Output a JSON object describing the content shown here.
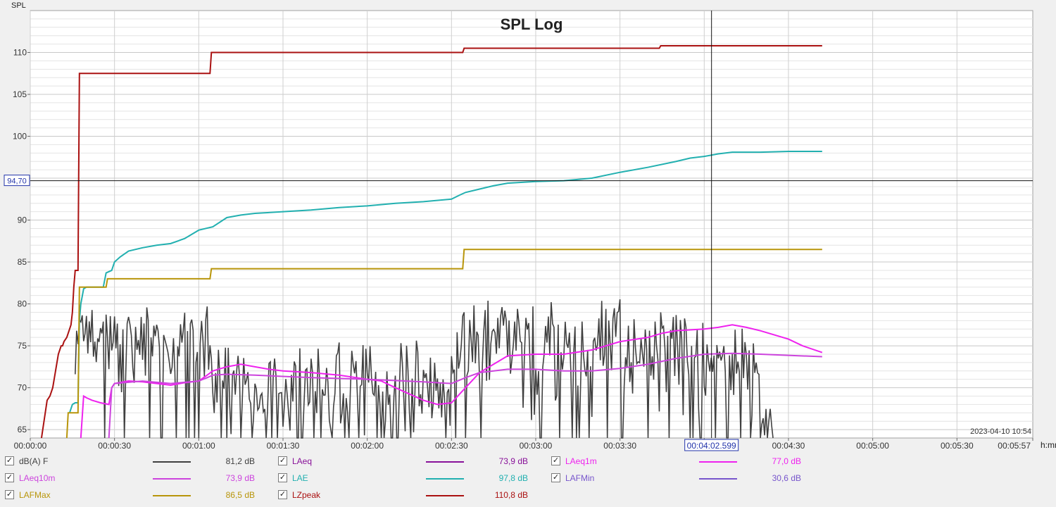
{
  "chart_data": {
    "type": "line",
    "title": "SPL Log",
    "ylabel": "SPL",
    "x_unit_label": "h:mm",
    "xlim": [
      "00:00:00",
      "00:05:57"
    ],
    "ylim": [
      64,
      115
    ],
    "x_ticks": [
      "00:00:00",
      "00:00:30",
      "00:01:00",
      "00:01:30",
      "00:02:00",
      "00:02:30",
      "00:03:00",
      "00:03:30",
      "00:04:00",
      "00:04:30",
      "00:05:00",
      "00:05:30",
      "00:05:57"
    ],
    "y_ticks": [
      "65",
      "70",
      "75",
      "80",
      "85",
      "90",
      "95",
      "100",
      "105",
      "110"
    ],
    "timestamp": "2023-04-10 10:54",
    "cursor": {
      "x_label": "00:04:02.599",
      "y_label": "94,70",
      "x_seconds": 242.6,
      "y_value": 94.7
    },
    "series": [
      {
        "name": "LZpeak",
        "color": "#aa1111",
        "x": [
          4,
          6,
          7,
          8,
          9,
          10,
          10.5,
          11,
          11.5,
          12,
          13,
          14,
          14.5,
          15,
          15.5,
          16,
          16.5,
          17,
          17.5,
          18,
          64,
          64.5,
          154,
          154.5,
          224,
          224.5,
          282
        ],
        "y": [
          64,
          68.5,
          69,
          70,
          72,
          74,
          74.5,
          75,
          75,
          75.5,
          76,
          77,
          77.5,
          79,
          82,
          84,
          84,
          84,
          107.5,
          107.5,
          107.5,
          110,
          110,
          110.5,
          110.5,
          110.8,
          110.8
        ]
      },
      {
        "name": "LAE",
        "color": "#22b0b0",
        "x": [
          14,
          15,
          16,
          17,
          17.5,
          18,
          19,
          20,
          21,
          22,
          24,
          26,
          27,
          29,
          30,
          32,
          35,
          40,
          45,
          50,
          55,
          60,
          65,
          70,
          75,
          80,
          90,
          100,
          110,
          120,
          130,
          140,
          150,
          153,
          155,
          160,
          165,
          170,
          180,
          190,
          200,
          210,
          220,
          230,
          235,
          240,
          245,
          250,
          260,
          270,
          282
        ],
        "y": [
          67,
          68,
          68.2,
          68.2,
          78,
          80,
          81.8,
          82,
          82,
          82,
          82,
          82,
          83.7,
          84,
          85,
          85.6,
          86.3,
          86.7,
          87,
          87.2,
          87.8,
          88.8,
          89.2,
          90.3,
          90.6,
          90.8,
          91,
          91.2,
          91.5,
          91.7,
          92,
          92.2,
          92.5,
          93,
          93.3,
          93.7,
          94.1,
          94.4,
          94.6,
          94.7,
          95,
          95.7,
          96.3,
          97,
          97.4,
          97.6,
          97.9,
          98.1,
          98.1,
          98.2,
          98.2
        ]
      },
      {
        "name": "LAFMax",
        "color": "#b8950a",
        "x": [
          13,
          13.5,
          17,
          17.5,
          27,
          27.5,
          64,
          64.5,
          154,
          154.5,
          282
        ],
        "y": [
          64,
          67,
          67,
          82,
          82,
          83,
          83,
          84.2,
          84.2,
          86.5,
          86.5
        ]
      },
      {
        "name": "LAeq1m",
        "color": "#ee22ee",
        "x": [
          18,
          19,
          20,
          22,
          25,
          28,
          29,
          30,
          35,
          40,
          45,
          50,
          55,
          60,
          63,
          65,
          70,
          75,
          80,
          85,
          90,
          100,
          110,
          120,
          125,
          130,
          140,
          145,
          150,
          155,
          160,
          165,
          170,
          180,
          185,
          190,
          200,
          210,
          220,
          225,
          230,
          240,
          245,
          250,
          255,
          260,
          270,
          275,
          282
        ],
        "y": [
          64,
          69,
          68.8,
          68.5,
          68.2,
          68,
          70,
          70.5,
          70.8,
          70.7,
          70.5,
          70.3,
          70.6,
          70.8,
          71.5,
          72,
          72.5,
          72.8,
          72.5,
          72.2,
          72,
          71.8,
          71.5,
          71,
          70.8,
          70,
          68.5,
          68,
          68.2,
          70,
          71.8,
          72.8,
          73.8,
          74,
          74,
          74,
          74.5,
          75.5,
          76,
          76.5,
          76.8,
          77,
          77.2,
          77.5,
          77.2,
          76.8,
          75.8,
          75,
          74.2
        ]
      },
      {
        "name": "LAeq10m",
        "color": "#cc44dd",
        "x": [
          28,
          29,
          30,
          40,
          50,
          60,
          63,
          65,
          70,
          80,
          100,
          120,
          140,
          150,
          155,
          160,
          165,
          170,
          180,
          190,
          200,
          210,
          220,
          230,
          240,
          250,
          260,
          282
        ],
        "y": [
          64,
          70,
          70.5,
          70.8,
          70.5,
          70.8,
          71.2,
          71.5,
          71.6,
          71.5,
          71.2,
          71,
          70.7,
          70.5,
          71.2,
          71.8,
          72,
          72.2,
          72.2,
          72,
          72,
          72.3,
          72.8,
          73.5,
          74,
          74.1,
          74,
          73.7
        ]
      },
      {
        "name": "dB(A) F",
        "color": "#404040",
        "x": [],
        "y": []
      }
    ]
  },
  "legend": [
    {
      "name": "dB(A) F",
      "value": "81,2 dB",
      "color": "#404040"
    },
    {
      "name": "LAeq",
      "value": "73,9 dB",
      "color": "#881199"
    },
    {
      "name": "LAeq1m",
      "value": "77,0 dB",
      "color": "#ee22ee"
    },
    {
      "name": "LAeq10m",
      "value": "73,9 dB",
      "color": "#cc44dd"
    },
    {
      "name": "LAE",
      "value": "97,8 dB",
      "color": "#22b0b0"
    },
    {
      "name": "LAFMin",
      "value": "30,6 dB",
      "color": "#7755cc"
    },
    {
      "name": "LAFMax",
      "value": "86,5 dB",
      "color": "#b8950a"
    },
    {
      "name": "LZpeak",
      "value": "110,8 dB",
      "color": "#aa1111"
    }
  ],
  "check_mark": "✓"
}
